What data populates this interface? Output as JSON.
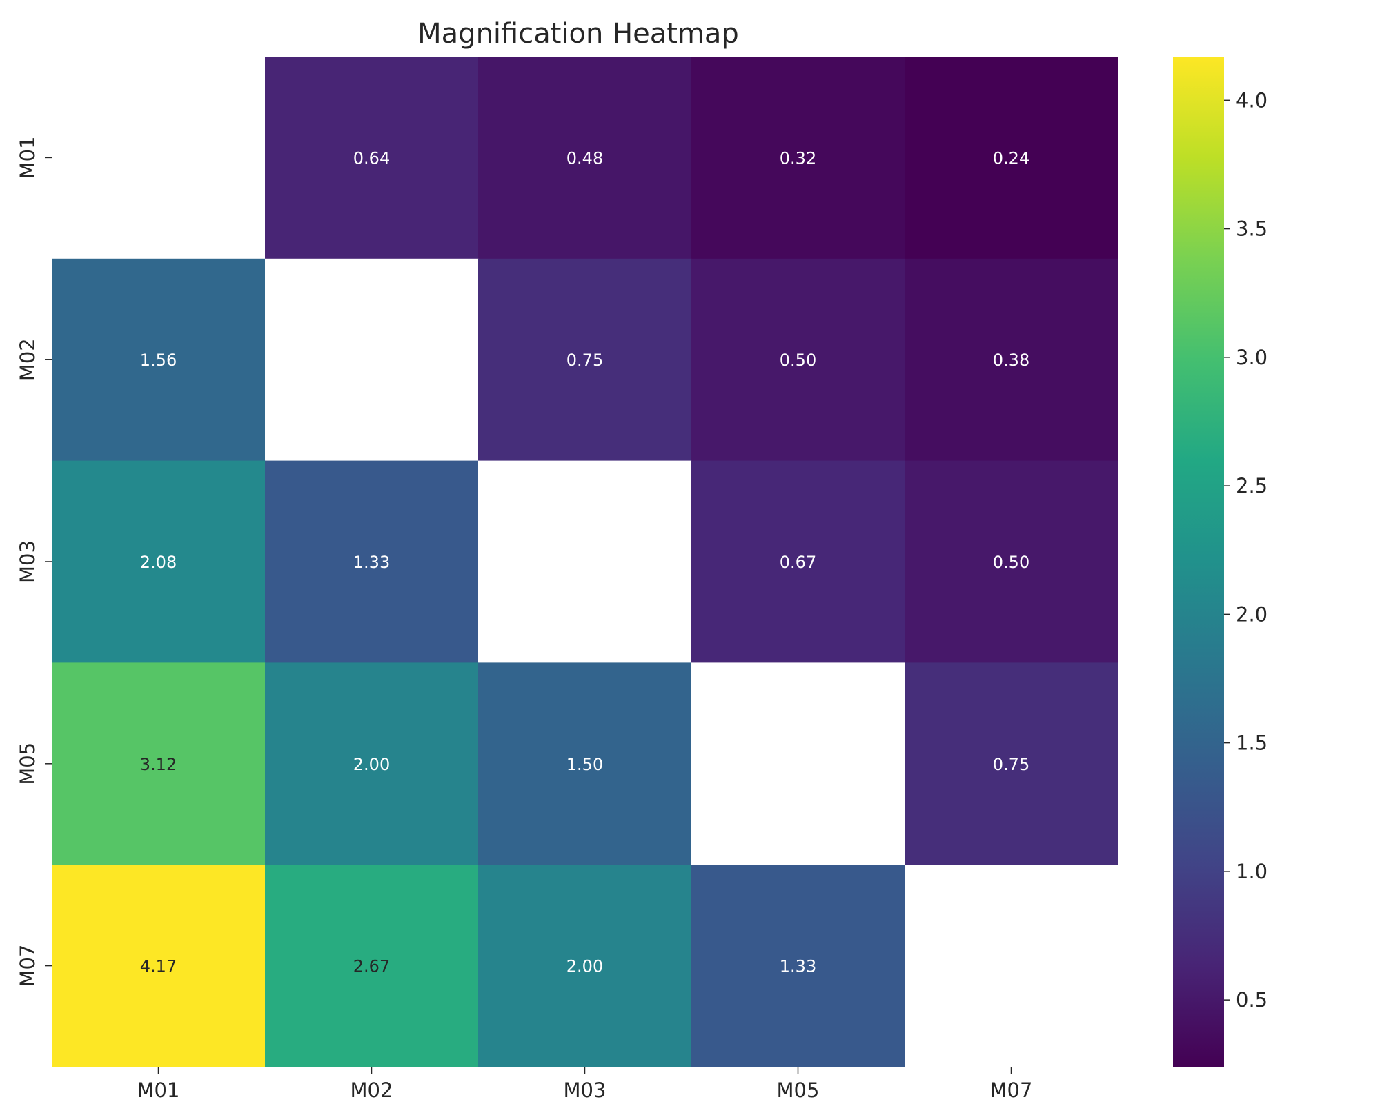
{
  "chart_data": {
    "type": "heatmap",
    "title": "Magnification Heatmap",
    "xlabel": "",
    "ylabel": "",
    "x_categories": [
      "M01",
      "M02",
      "M03",
      "M05",
      "M07"
    ],
    "y_categories": [
      "M01",
      "M02",
      "M03",
      "M05",
      "M07"
    ],
    "values": [
      [
        null,
        0.64,
        0.48,
        0.32,
        0.24
      ],
      [
        1.56,
        null,
        0.75,
        0.5,
        0.38
      ],
      [
        2.08,
        1.33,
        null,
        0.67,
        0.5
      ],
      [
        3.12,
        2.0,
        1.5,
        null,
        0.75
      ],
      [
        4.17,
        2.67,
        2.0,
        1.33,
        null
      ]
    ],
    "labels": [
      [
        "",
        "0.64",
        "0.48",
        "0.32",
        "0.24"
      ],
      [
        "1.56",
        "",
        "0.75",
        "0.50",
        "0.38"
      ],
      [
        "2.08",
        "1.33",
        "",
        "0.67",
        "0.50"
      ],
      [
        "3.12",
        "2.00",
        "1.50",
        "",
        "0.75"
      ],
      [
        "4.17",
        "2.67",
        "2.00",
        "1.33",
        ""
      ]
    ],
    "colormap": "viridis",
    "color_range": [
      0.24,
      4.17
    ],
    "colorbar": {
      "ticks": [
        0.5,
        1.0,
        1.5,
        2.0,
        2.5,
        3.0,
        3.5,
        4.0
      ],
      "tick_labels": [
        "0.5",
        "1.0",
        "1.5",
        "2.0",
        "2.5",
        "3.0",
        "3.5",
        "4.0"
      ]
    },
    "missing_color": "#ffffff",
    "grid": false,
    "colorbar_position": "right"
  }
}
